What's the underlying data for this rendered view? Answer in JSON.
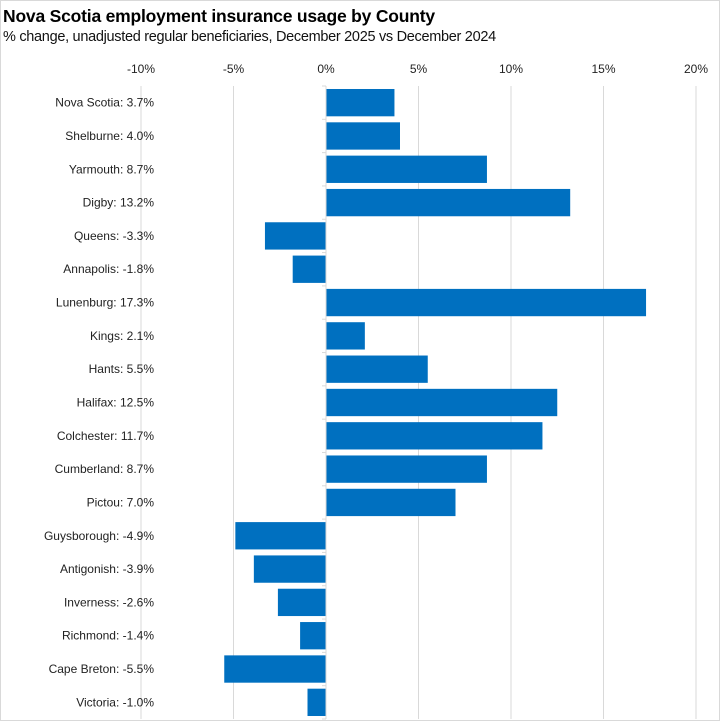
{
  "chart_data": {
    "type": "bar",
    "orientation": "horizontal",
    "title": "Nova Scotia employment insurance usage by County",
    "subtitle": "% change, unadjusted regular beneficiaries, December 2025 vs December 2024",
    "xlabel": "",
    "ylabel": "",
    "xlim": [
      -10,
      20
    ],
    "xticks": [
      -10,
      -5,
      0,
      5,
      10,
      15,
      20
    ],
    "xtick_labels": [
      "-10%",
      "-5%",
      "0%",
      "5%",
      "10%",
      "15%",
      "20%"
    ],
    "tick_position": "top",
    "grid": true,
    "legend": "none",
    "bar_color": "#0070C0",
    "categories": [
      "Nova Scotia: 3.7%",
      "Shelburne: 4.0%",
      "Yarmouth: 8.7%",
      "Digby: 13.2%",
      "Queens: -3.3%",
      "Annapolis: -1.8%",
      "Lunenburg: 17.3%",
      "Kings: 2.1%",
      "Hants: 5.5%",
      "Halifax: 12.5%",
      "Colchester: 11.7%",
      "Cumberland: 8.7%",
      "Pictou: 7.0%",
      "Guysborough: -4.9%",
      "Antigonish: -3.9%",
      "Inverness: -2.6%",
      "Richmond: -1.4%",
      "Cape Breton: -5.5%",
      "Victoria: -1.0%"
    ],
    "values": [
      3.7,
      4.0,
      8.7,
      13.2,
      -3.3,
      -1.8,
      17.3,
      2.1,
      5.5,
      12.5,
      11.7,
      8.7,
      7.0,
      -4.9,
      -3.9,
      -2.6,
      -1.4,
      -5.5,
      -1.0
    ]
  }
}
